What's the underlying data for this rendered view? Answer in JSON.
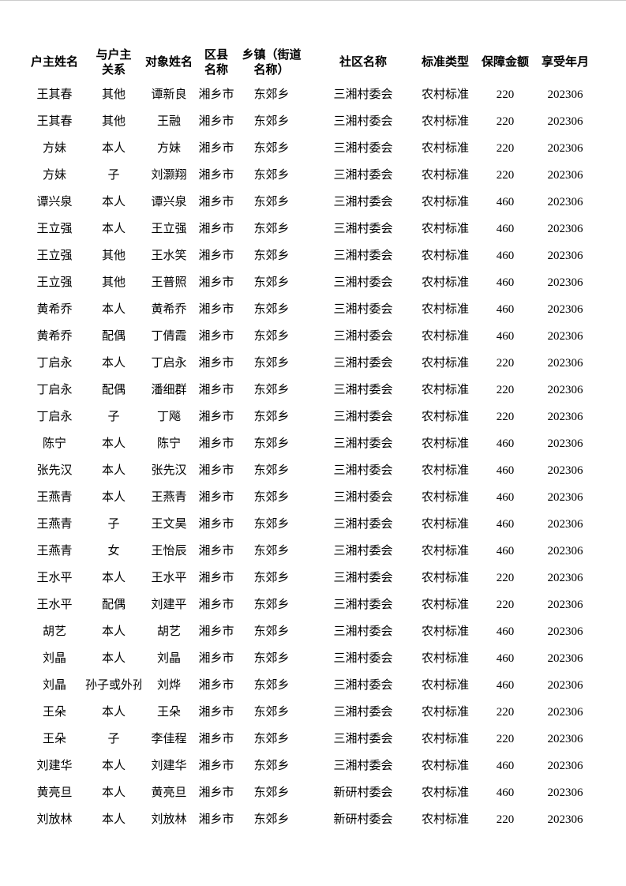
{
  "page": {
    "background_color": "#ffffff",
    "text_color": "#000000",
    "top_edge_line_color": "#cccccc"
  },
  "table": {
    "columns": [
      {
        "id": "household-head-name",
        "lines": [
          "户主姓名"
        ]
      },
      {
        "id": "relation-to-head",
        "lines": [
          "与户主",
          "关系"
        ]
      },
      {
        "id": "person-name",
        "lines": [
          "对象姓名"
        ]
      },
      {
        "id": "county-name",
        "lines": [
          "区县",
          "名称"
        ]
      },
      {
        "id": "township-name",
        "lines": [
          "乡镇（街道",
          "名称）"
        ]
      },
      {
        "id": "community-name",
        "lines": [
          "社区名称"
        ]
      },
      {
        "id": "standard-type",
        "lines": [
          "标准类型"
        ]
      },
      {
        "id": "guarantee-amount",
        "lines": [
          "保障金额"
        ]
      },
      {
        "id": "benefit-year-month",
        "lines": [
          "享受年月"
        ]
      }
    ],
    "rows": [
      [
        "王其春",
        "其他",
        "谭新良",
        "湘乡市",
        "东郊乡",
        "三湘村委会",
        "农村标准",
        "220",
        "202306"
      ],
      [
        "王其春",
        "其他",
        "王融",
        "湘乡市",
        "东郊乡",
        "三湘村委会",
        "农村标准",
        "220",
        "202306"
      ],
      [
        "方妹",
        "本人",
        "方妹",
        "湘乡市",
        "东郊乡",
        "三湘村委会",
        "农村标准",
        "220",
        "202306"
      ],
      [
        "方妹",
        "子",
        "刘灏翔",
        "湘乡市",
        "东郊乡",
        "三湘村委会",
        "农村标准",
        "220",
        "202306"
      ],
      [
        "谭兴泉",
        "本人",
        "谭兴泉",
        "湘乡市",
        "东郊乡",
        "三湘村委会",
        "农村标准",
        "460",
        "202306"
      ],
      [
        "王立强",
        "本人",
        "王立强",
        "湘乡市",
        "东郊乡",
        "三湘村委会",
        "农村标准",
        "460",
        "202306"
      ],
      [
        "王立强",
        "其他",
        "王水笑",
        "湘乡市",
        "东郊乡",
        "三湘村委会",
        "农村标准",
        "460",
        "202306"
      ],
      [
        "王立强",
        "其他",
        "王普照",
        "湘乡市",
        "东郊乡",
        "三湘村委会",
        "农村标准",
        "460",
        "202306"
      ],
      [
        "黄希乔",
        "本人",
        "黄希乔",
        "湘乡市",
        "东郊乡",
        "三湘村委会",
        "农村标准",
        "460",
        "202306"
      ],
      [
        "黄希乔",
        "配偶",
        "丁倩霞",
        "湘乡市",
        "东郊乡",
        "三湘村委会",
        "农村标准",
        "460",
        "202306"
      ],
      [
        "丁启永",
        "本人",
        "丁启永",
        "湘乡市",
        "东郊乡",
        "三湘村委会",
        "农村标准",
        "220",
        "202306"
      ],
      [
        "丁启永",
        "配偶",
        "潘细群",
        "湘乡市",
        "东郊乡",
        "三湘村委会",
        "农村标准",
        "220",
        "202306"
      ],
      [
        "丁启永",
        "子",
        "丁飚",
        "湘乡市",
        "东郊乡",
        "三湘村委会",
        "农村标准",
        "220",
        "202306"
      ],
      [
        "陈宁",
        "本人",
        "陈宁",
        "湘乡市",
        "东郊乡",
        "三湘村委会",
        "农村标准",
        "460",
        "202306"
      ],
      [
        "张先汉",
        "本人",
        "张先汉",
        "湘乡市",
        "东郊乡",
        "三湘村委会",
        "农村标准",
        "460",
        "202306"
      ],
      [
        "王燕青",
        "本人",
        "王燕青",
        "湘乡市",
        "东郊乡",
        "三湘村委会",
        "农村标准",
        "460",
        "202306"
      ],
      [
        "王燕青",
        "子",
        "王文昊",
        "湘乡市",
        "东郊乡",
        "三湘村委会",
        "农村标准",
        "460",
        "202306"
      ],
      [
        "王燕青",
        "女",
        "王怡辰",
        "湘乡市",
        "东郊乡",
        "三湘村委会",
        "农村标准",
        "460",
        "202306"
      ],
      [
        "王水平",
        "本人",
        "王水平",
        "湘乡市",
        "东郊乡",
        "三湘村委会",
        "农村标准",
        "220",
        "202306"
      ],
      [
        "王水平",
        "配偶",
        "刘建平",
        "湘乡市",
        "东郊乡",
        "三湘村委会",
        "农村标准",
        "220",
        "202306"
      ],
      [
        "胡艺",
        "本人",
        "胡艺",
        "湘乡市",
        "东郊乡",
        "三湘村委会",
        "农村标准",
        "460",
        "202306"
      ],
      [
        "刘晶",
        "本人",
        "刘晶",
        "湘乡市",
        "东郊乡",
        "三湘村委会",
        "农村标准",
        "460",
        "202306"
      ],
      [
        "刘晶",
        "孙子或外孙子",
        "刘烨",
        "湘乡市",
        "东郊乡",
        "三湘村委会",
        "农村标准",
        "460",
        "202306"
      ],
      [
        "王朵",
        "本人",
        "王朵",
        "湘乡市",
        "东郊乡",
        "三湘村委会",
        "农村标准",
        "220",
        "202306"
      ],
      [
        "王朵",
        "子",
        "李佳程",
        "湘乡市",
        "东郊乡",
        "三湘村委会",
        "农村标准",
        "220",
        "202306"
      ],
      [
        "刘建华",
        "本人",
        "刘建华",
        "湘乡市",
        "东郊乡",
        "三湘村委会",
        "农村标准",
        "460",
        "202306"
      ],
      [
        "黄亮旦",
        "本人",
        "黄亮旦",
        "湘乡市",
        "东郊乡",
        "新研村委会",
        "农村标准",
        "460",
        "202306"
      ],
      [
        "刘放林",
        "本人",
        "刘放林",
        "湘乡市",
        "东郊乡",
        "新研村委会",
        "农村标准",
        "220",
        "202306"
      ]
    ]
  }
}
